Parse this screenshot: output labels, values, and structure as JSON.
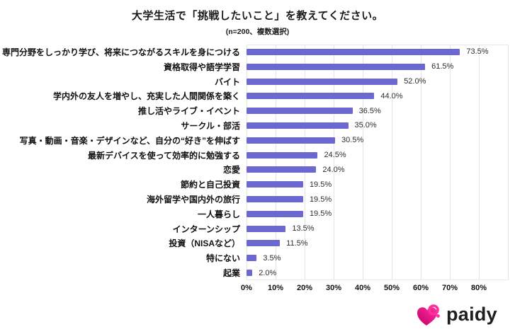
{
  "header": {
    "title": "大学生活で「挑戦したいこと」を教えてください。",
    "subtitle": "(n=200、複数選択)"
  },
  "chart_data": {
    "type": "bar",
    "orientation": "horizontal",
    "title": "大学生活で「挑戦したいこと」を教えてください。",
    "subtitle": "(n=200、複数選択)",
    "categories": [
      "専門分野をしっかり学び、将来につながるスキルを身につける",
      "資格取得や語学学習",
      "バイト",
      "学内外の友人を増やし、充実した人間関係を築く",
      "推し活やライブ・イベント",
      "サークル・部活",
      "写真・動画・音楽・デザインなど、自分の“好き”を伸ばす",
      "最新デバイスを使って効率的に勉強する",
      "恋愛",
      "節約と自己投資",
      "海外留学や国内外の旅行",
      "一人暮らし",
      "インターンシップ",
      "投資（NISAなど）",
      "特にない",
      "起業"
    ],
    "values": [
      73.5,
      61.5,
      52.0,
      44.0,
      36.5,
      35.0,
      30.5,
      24.5,
      24.0,
      19.5,
      19.5,
      19.5,
      13.5,
      11.5,
      3.5,
      2.0
    ],
    "value_labels": [
      "73.5%",
      "61.5%",
      "52.0%",
      "44.0%",
      "36.5%",
      "35.0%",
      "30.5%",
      "24.5%",
      "24.0%",
      "19.5%",
      "19.5%",
      "19.5%",
      "13.5%",
      "11.5%",
      "3.5%",
      "2.0%"
    ],
    "x_ticks": [
      "0%",
      "10%",
      "20%",
      "30%",
      "40%",
      "50%",
      "60%",
      "70%",
      "80%"
    ],
    "xlim": [
      0,
      90
    ],
    "grid": true,
    "bar_color": "#6b69d1",
    "gridline_color": "#e5e5e5"
  },
  "footer": {
    "logo_text": "paidy",
    "logo_icon": "paidy-heart-icon",
    "logo_pink": "#ff2f9e",
    "logo_magenta": "#d4006e",
    "logo_text_color": "#1f1f1f"
  }
}
